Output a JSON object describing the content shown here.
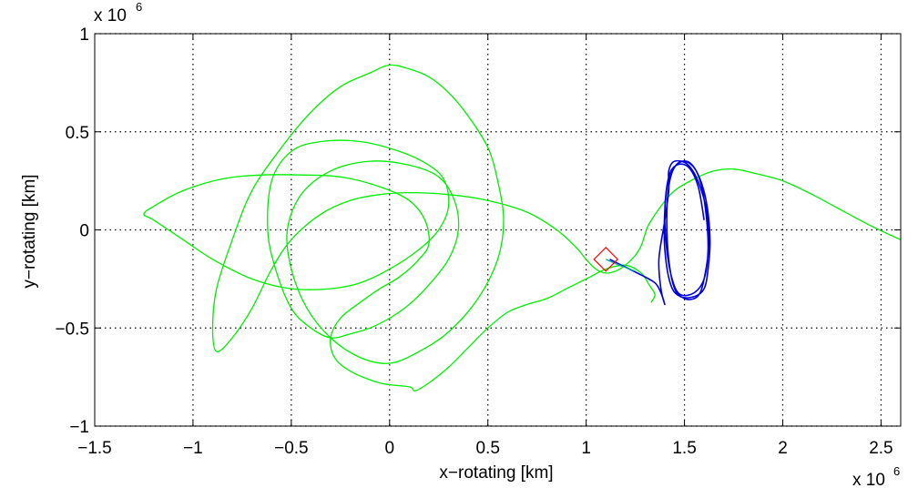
{
  "chart_data": {
    "type": "line",
    "title": "",
    "xlabel": "x−rotating [km]",
    "ylabel": "y−rotating [km]",
    "x_exponent_base": "x 10",
    "x_exponent_power": "6",
    "y_exponent_base": "x 10",
    "y_exponent_power": "6",
    "xlim": [
      -1.5,
      2.6
    ],
    "ylim": [
      -1,
      1
    ],
    "xscale": 1000000,
    "yscale": 1000000,
    "grid": true,
    "x_ticks": [
      -1.5,
      -1,
      -0.5,
      0,
      0.5,
      1,
      1.5,
      2,
      2.5
    ],
    "x_tick_labels": [
      "−1.5",
      "−1",
      "−0.5",
      "0",
      "0.5",
      "1",
      "1.5",
      "2",
      "2.5"
    ],
    "y_ticks": [
      1,
      0.5,
      0,
      -0.5,
      -1
    ],
    "y_tick_labels": [
      "1",
      "0.5",
      "0",
      "−0.5",
      "−1"
    ],
    "series": [
      {
        "color": "#00ee00",
        "description": "green trajectory",
        "x": [
          2.6,
          2.45,
          2.3,
          2.15,
          2.0,
          1.85,
          1.75,
          1.65,
          1.55,
          1.45,
          1.38,
          1.32,
          1.3,
          1.28,
          1.25,
          1.2,
          1.15,
          1.1,
          1.05,
          1.0,
          0.95,
          0.85,
          0.7,
          0.5,
          0.3,
          0.1,
          -0.05,
          -0.2,
          -0.35,
          -0.5,
          -0.6,
          -0.7,
          -0.8,
          -0.88,
          -0.9,
          -0.88,
          -0.8,
          -0.7,
          -0.55,
          -0.4,
          -0.25,
          -0.1,
          0.0,
          0.1,
          0.2,
          0.3,
          0.4,
          0.5,
          0.55,
          0.58,
          0.55,
          0.45,
          0.3,
          0.15,
          0.0,
          -0.15,
          -0.3,
          -0.42,
          -0.5,
          -0.52,
          -0.45,
          -0.3,
          -0.1,
          0.1,
          0.25,
          0.33,
          0.35,
          0.3,
          0.2,
          0.1,
          0.0,
          -0.1,
          -0.2,
          -0.3,
          -0.4,
          -0.5,
          -0.58,
          -0.62,
          -0.6,
          -0.5,
          -0.35,
          -0.15,
          0.05,
          0.2,
          0.28,
          0.3,
          0.25,
          0.15,
          0.0,
          -0.15,
          -0.3,
          -0.5,
          -0.7,
          -0.9,
          -1.05,
          -1.2,
          -1.25,
          -1.2,
          -1.05,
          -0.85,
          -0.65,
          -0.45,
          -0.25,
          -0.05,
          0.1,
          0.18,
          0.2,
          0.15,
          0.05,
          -0.05,
          -0.15,
          -0.25,
          -0.3,
          -0.28,
          -0.2,
          -0.05,
          0.1,
          0.13,
          0.2,
          0.3,
          0.4,
          0.5,
          0.6,
          0.7,
          0.8,
          0.9,
          1.0,
          1.1,
          1.2,
          1.28,
          1.32,
          1.35,
          1.33
        ],
        "y": [
          -0.05,
          0.02,
          0.1,
          0.18,
          0.25,
          0.29,
          0.31,
          0.3,
          0.26,
          0.2,
          0.12,
          0.03,
          -0.02,
          -0.08,
          -0.13,
          -0.18,
          -0.21,
          -0.22,
          -0.2,
          -0.15,
          -0.09,
          0.0,
          0.09,
          0.15,
          0.18,
          0.19,
          0.18,
          0.15,
          0.08,
          -0.05,
          -0.2,
          -0.4,
          -0.55,
          -0.62,
          -0.5,
          -0.3,
          -0.05,
          0.2,
          0.42,
          0.6,
          0.73,
          0.8,
          0.84,
          0.82,
          0.78,
          0.7,
          0.58,
          0.42,
          0.25,
          0.05,
          -0.15,
          -0.35,
          -0.52,
          -0.62,
          -0.68,
          -0.65,
          -0.55,
          -0.4,
          -0.2,
          0.0,
          0.18,
          0.3,
          0.35,
          0.33,
          0.27,
          0.15,
          0.0,
          -0.15,
          -0.28,
          -0.38,
          -0.45,
          -0.5,
          -0.53,
          -0.55,
          -0.5,
          -0.4,
          -0.2,
          0.0,
          0.25,
          0.4,
          0.45,
          0.45,
          0.4,
          0.33,
          0.25,
          0.12,
          0.0,
          -0.1,
          -0.2,
          -0.27,
          -0.3,
          -0.3,
          -0.25,
          -0.15,
          -0.05,
          0.05,
          0.08,
          0.12,
          0.2,
          0.26,
          0.28,
          0.28,
          0.27,
          0.22,
          0.15,
          0.05,
          -0.07,
          -0.15,
          -0.24,
          -0.3,
          -0.37,
          -0.45,
          -0.55,
          -0.65,
          -0.72,
          -0.78,
          -0.8,
          -0.82,
          -0.78,
          -0.7,
          -0.6,
          -0.5,
          -0.42,
          -0.38,
          -0.35,
          -0.3,
          -0.25,
          -0.2,
          -0.18,
          -0.22,
          -0.28,
          -0.33,
          -0.37
        ]
      },
      {
        "color": "#0000dd",
        "description": "blue trajectory",
        "x": [
          1.12,
          1.2,
          1.28,
          1.35,
          1.38,
          1.4,
          1.38,
          1.37,
          1.4,
          1.42,
          1.42,
          1.45,
          1.52,
          1.58,
          1.62,
          1.62,
          1.6,
          1.58,
          1.55,
          1.5,
          1.45,
          1.42,
          1.41,
          1.42,
          1.45,
          1.5,
          1.56,
          1.61,
          1.63,
          1.62,
          1.6,
          1.55,
          1.48,
          1.43,
          1.4,
          1.4,
          1.42,
          1.47,
          1.53,
          1.58,
          1.61,
          1.62,
          1.6,
          1.55,
          1.48,
          1.44,
          1.41,
          1.4,
          1.42,
          1.46,
          1.52,
          1.57,
          1.6
        ],
        "y": [
          -0.15,
          -0.19,
          -0.23,
          -0.27,
          -0.32,
          -0.38,
          -0.3,
          -0.15,
          0.05,
          0.2,
          0.3,
          0.35,
          0.33,
          0.22,
          0.05,
          -0.12,
          -0.25,
          -0.32,
          -0.35,
          -0.35,
          -0.3,
          -0.15,
          0.05,
          0.22,
          0.32,
          0.35,
          0.3,
          0.15,
          -0.05,
          -0.2,
          -0.3,
          -0.34,
          -0.34,
          -0.28,
          -0.1,
          0.1,
          0.26,
          0.34,
          0.34,
          0.25,
          0.08,
          -0.1,
          -0.25,
          -0.32,
          -0.33,
          -0.26,
          -0.1,
          0.1,
          0.27,
          0.33,
          0.32,
          0.22,
          0.05
        ]
      },
      {
        "color": "#00aaaa",
        "description": "cyan segment",
        "x": [
          1.1,
          1.17,
          1.25
        ],
        "y": [
          -0.15,
          -0.18,
          -0.21
        ]
      }
    ],
    "marker": {
      "shape": "diamond",
      "color": "#ff0000",
      "x": 1.1,
      "y": -0.15
    }
  }
}
